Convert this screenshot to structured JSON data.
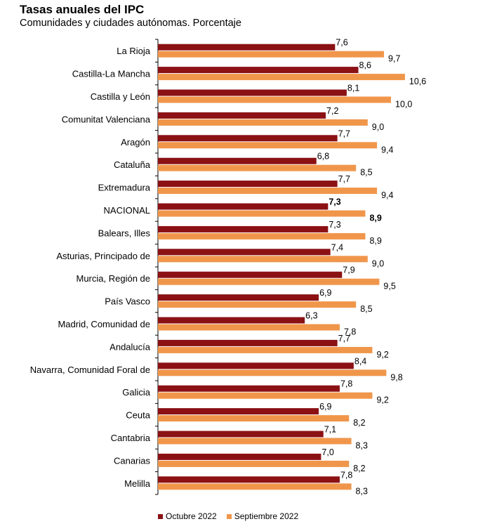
{
  "title": "Tasas anuales del IPC",
  "subtitle": "Comunidades y ciudades autónomas. Porcentaje",
  "colors": {
    "octubre": "#8B1114",
    "septiembre": "#F0964B",
    "axis": "#000000"
  },
  "chart_data": {
    "type": "bar",
    "orientation": "horizontal",
    "categories": [
      "La Rioja",
      "Castilla-La Mancha",
      "Castilla y León",
      "Comunitat Valenciana",
      "Aragón",
      "Cataluña",
      "Extremadura",
      "NACIONAL",
      "Balears, Illes",
      "Asturias, Principado de",
      "Murcia, Región de",
      "País Vasco",
      "Madrid, Comunidad de",
      "Andalucía",
      "Navarra, Comunidad Foral de",
      "Galicia",
      "Ceuta",
      "Cantabria",
      "Canarias",
      "Melilla"
    ],
    "series": [
      {
        "name": "Octubre 2022",
        "values": [
          7.6,
          8.6,
          8.1,
          7.2,
          7.7,
          6.8,
          7.7,
          7.3,
          7.3,
          7.4,
          7.9,
          6.9,
          6.3,
          7.7,
          8.4,
          7.8,
          6.9,
          7.1,
          7.0,
          7.8
        ]
      },
      {
        "name": "Septiembre 2022",
        "values": [
          9.7,
          10.6,
          10.0,
          9.0,
          9.4,
          8.5,
          9.4,
          8.9,
          8.9,
          9.0,
          9.5,
          8.5,
          7.8,
          9.2,
          9.8,
          9.2,
          8.2,
          8.3,
          8.2,
          8.3
        ]
      }
    ],
    "value_labels": {
      "octubre": [
        "7,6",
        "8,6",
        "8,1",
        "7,2",
        "7,7",
        "6,8",
        "7,7",
        "7,3",
        "7,3",
        "7,4",
        "7,9",
        "6,9",
        "6,3",
        "7,7",
        "8,4",
        "7,8",
        "6,9",
        "7,1",
        "7,0",
        "7,8"
      ],
      "septiembre": [
        "9,7",
        "10,6",
        "10,0",
        "9,0",
        "9,4",
        "8,5",
        "9,4",
        "8,9",
        "8,9",
        "9,0",
        "9,5",
        "8,5",
        "7,8",
        "9,2",
        "9,8",
        "9,2",
        "8,2",
        "8,3",
        "8,2",
        "8,3"
      ]
    },
    "bold_category": "NACIONAL",
    "xlim": [
      0,
      12
    ],
    "grid": false,
    "legend_position": "bottom"
  }
}
